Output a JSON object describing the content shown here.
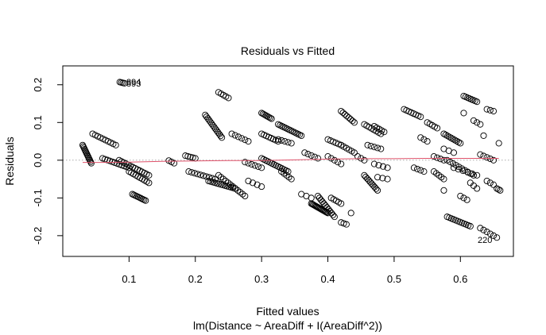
{
  "chart_data": {
    "type": "scatter",
    "title": "Residuals vs Fitted",
    "xlabel": "Fitted values",
    "subtitle": "lm(Distance ~ AreaDiff + I(AreaDiff^2))",
    "ylabel": "Residuals",
    "xlim": [
      0.0,
      0.68
    ],
    "ylim": [
      -0.255,
      0.25
    ],
    "x_ticks": [
      0.1,
      0.2,
      0.3,
      0.4,
      0.5,
      0.6
    ],
    "x_tick_labels": [
      "0.1",
      "0.2",
      "0.3",
      "0.4",
      "0.5",
      "0.6"
    ],
    "y_ticks": [
      -0.2,
      -0.1,
      0.0,
      0.1,
      0.2
    ],
    "y_tick_labels": [
      "-0.2",
      "-0.1",
      "0.0",
      "0.1",
      "0.2"
    ],
    "grid": false,
    "zero_line": {
      "y": 0.0,
      "style": "dotted",
      "color": "#aaaaaa"
    },
    "smooth_color": "#df536b",
    "smooth_line": [
      [
        0.03,
        -0.006
      ],
      [
        0.06,
        -0.006
      ],
      [
        0.1,
        -0.005
      ],
      [
        0.15,
        -0.003
      ],
      [
        0.2,
        -0.002
      ],
      [
        0.25,
        -0.001
      ],
      [
        0.3,
        -0.001
      ],
      [
        0.35,
        0.001
      ],
      [
        0.4,
        0.003
      ],
      [
        0.45,
        0.004
      ],
      [
        0.5,
        0.004
      ],
      [
        0.55,
        0.005
      ],
      [
        0.6,
        0.005
      ],
      [
        0.658,
        0.005
      ]
    ],
    "point_style": {
      "shape": "open-circle",
      "color": "#000000"
    },
    "point_clusters": [
      {
        "x0": 0.03,
        "y0": 0.04,
        "x1": 0.043,
        "y1": -0.008,
        "n": 14
      },
      {
        "x0": 0.045,
        "y0": 0.07,
        "x1": 0.08,
        "y1": 0.04,
        "n": 10
      },
      {
        "x0": 0.06,
        "y0": 0.005,
        "x1": 0.1,
        "y1": -0.02,
        "n": 12
      },
      {
        "x0": 0.085,
        "y0": 0.0,
        "x1": 0.13,
        "y1": -0.04,
        "n": 14
      },
      {
        "x0": 0.1,
        "y0": -0.03,
        "x1": 0.13,
        "y1": -0.06,
        "n": 10
      },
      {
        "x0": 0.105,
        "y0": -0.09,
        "x1": 0.125,
        "y1": -0.107,
        "n": 10
      },
      {
        "x0": 0.086,
        "y0": 0.207,
        "x1": 0.093,
        "y1": 0.204,
        "n": 4
      },
      {
        "x0": 0.16,
        "y0": -0.001,
        "x1": 0.168,
        "y1": -0.008,
        "n": 3
      },
      {
        "x0": 0.185,
        "y0": 0.012,
        "x1": 0.2,
        "y1": 0.005,
        "n": 5
      },
      {
        "x0": 0.19,
        "y0": -0.03,
        "x1": 0.23,
        "y1": -0.05,
        "n": 10
      },
      {
        "x0": 0.215,
        "y0": 0.12,
        "x1": 0.24,
        "y1": 0.06,
        "n": 14
      },
      {
        "x0": 0.22,
        "y0": -0.055,
        "x1": 0.26,
        "y1": -0.075,
        "n": 14
      },
      {
        "x0": 0.235,
        "y0": 0.18,
        "x1": 0.25,
        "y1": 0.165,
        "n": 5
      },
      {
        "x0": 0.235,
        "y0": -0.04,
        "x1": 0.275,
        "y1": -0.095,
        "n": 12
      },
      {
        "x0": 0.255,
        "y0": 0.07,
        "x1": 0.28,
        "y1": 0.05,
        "n": 6
      },
      {
        "x0": 0.275,
        "y0": -0.005,
        "x1": 0.3,
        "y1": -0.02,
        "n": 6
      },
      {
        "x0": 0.28,
        "y0": -0.055,
        "x1": 0.3,
        "y1": -0.07,
        "n": 4
      },
      {
        "x0": 0.3,
        "y0": 0.125,
        "x1": 0.315,
        "y1": 0.11,
        "n": 8
      },
      {
        "x0": 0.3,
        "y0": 0.07,
        "x1": 0.325,
        "y1": 0.05,
        "n": 8
      },
      {
        "x0": 0.3,
        "y0": 0.005,
        "x1": 0.34,
        "y1": -0.03,
        "n": 14
      },
      {
        "x0": 0.325,
        "y0": 0.095,
        "x1": 0.36,
        "y1": 0.065,
        "n": 14
      },
      {
        "x0": 0.325,
        "y0": 0.055,
        "x1": 0.345,
        "y1": 0.045,
        "n": 5
      },
      {
        "x0": 0.33,
        "y0": -0.03,
        "x1": 0.345,
        "y1": -0.05,
        "n": 5
      },
      {
        "x0": 0.365,
        "y0": 0.02,
        "x1": 0.385,
        "y1": 0.005,
        "n": 5
      },
      {
        "x0": 0.36,
        "y0": -0.09,
        "x1": 0.375,
        "y1": -0.1,
        "n": 3
      },
      {
        "x0": 0.375,
        "y0": -0.115,
        "x1": 0.4,
        "y1": -0.14,
        "n": 18
      },
      {
        "x0": 0.385,
        "y0": -0.095,
        "x1": 0.41,
        "y1": -0.15,
        "n": 12
      },
      {
        "x0": 0.4,
        "y0": 0.055,
        "x1": 0.42,
        "y1": 0.04,
        "n": 6
      },
      {
        "x0": 0.4,
        "y0": 0.01,
        "x1": 0.42,
        "y1": -0.01,
        "n": 5
      },
      {
        "x0": 0.405,
        "y0": -0.1,
        "x1": 0.42,
        "y1": -0.115,
        "n": 5
      },
      {
        "x0": 0.42,
        "y0": 0.13,
        "x1": 0.44,
        "y1": 0.1,
        "n": 8
      },
      {
        "x0": 0.42,
        "y0": -0.165,
        "x1": 0.428,
        "y1": -0.17,
        "n": 3
      },
      {
        "x0": 0.42,
        "y0": 0.04,
        "x1": 0.44,
        "y1": 0.02,
        "n": 6
      },
      {
        "x0": 0.435,
        "y0": -0.14,
        "x1": 0.435,
        "y1": -0.14,
        "n": 1
      },
      {
        "x0": 0.445,
        "y0": 0.01,
        "x1": 0.455,
        "y1": 0.0,
        "n": 3
      },
      {
        "x0": 0.455,
        "y0": 0.095,
        "x1": 0.48,
        "y1": 0.07,
        "n": 8
      },
      {
        "x0": 0.455,
        "y0": -0.04,
        "x1": 0.475,
        "y1": -0.08,
        "n": 10
      },
      {
        "x0": 0.46,
        "y0": 0.04,
        "x1": 0.48,
        "y1": 0.03,
        "n": 5
      },
      {
        "x0": 0.47,
        "y0": 0.09,
        "x1": 0.485,
        "y1": 0.075,
        "n": 5
      },
      {
        "x0": 0.47,
        "y0": -0.01,
        "x1": 0.49,
        "y1": -0.02,
        "n": 4
      },
      {
        "x0": 0.475,
        "y0": -0.045,
        "x1": 0.49,
        "y1": -0.05,
        "n": 3
      },
      {
        "x0": 0.515,
        "y0": 0.135,
        "x1": 0.54,
        "y1": 0.115,
        "n": 8
      },
      {
        "x0": 0.53,
        "y0": -0.02,
        "x1": 0.545,
        "y1": -0.03,
        "n": 4
      },
      {
        "x0": 0.54,
        "y0": 0.06,
        "x1": 0.55,
        "y1": 0.05,
        "n": 3
      },
      {
        "x0": 0.55,
        "y0": 0.1,
        "x1": 0.565,
        "y1": 0.085,
        "n": 5
      },
      {
        "x0": 0.56,
        "y0": 0.01,
        "x1": 0.575,
        "y1": 0.0,
        "n": 4
      },
      {
        "x0": 0.56,
        "y0": -0.03,
        "x1": 0.575,
        "y1": -0.05,
        "n": 5
      },
      {
        "x0": 0.575,
        "y0": 0.07,
        "x1": 0.6,
        "y1": 0.045,
        "n": 10
      },
      {
        "x0": 0.575,
        "y0": 0.03,
        "x1": 0.59,
        "y1": 0.02,
        "n": 3
      },
      {
        "x0": 0.575,
        "y0": -0.08,
        "x1": 0.58,
        "y1": -0.08,
        "n": 1
      },
      {
        "x0": 0.58,
        "y0": 0.0,
        "x1": 0.62,
        "y1": -0.04,
        "n": 10
      },
      {
        "x0": 0.58,
        "y0": -0.15,
        "x1": 0.615,
        "y1": -0.175,
        "n": 12
      },
      {
        "x0": 0.59,
        "y0": -0.02,
        "x1": 0.625,
        "y1": -0.04,
        "n": 6
      },
      {
        "x0": 0.6,
        "y0": -0.095,
        "x1": 0.61,
        "y1": -0.105,
        "n": 3
      },
      {
        "x0": 0.605,
        "y0": 0.17,
        "x1": 0.625,
        "y1": 0.155,
        "n": 8
      },
      {
        "x0": 0.605,
        "y0": 0.125,
        "x1": 0.605,
        "y1": 0.125,
        "n": 1
      },
      {
        "x0": 0.615,
        "y0": -0.06,
        "x1": 0.625,
        "y1": -0.075,
        "n": 3
      },
      {
        "x0": 0.62,
        "y0": 0.105,
        "x1": 0.63,
        "y1": 0.095,
        "n": 3
      },
      {
        "x0": 0.63,
        "y0": -0.18,
        "x1": 0.655,
        "y1": -0.205,
        "n": 6
      },
      {
        "x0": 0.63,
        "y0": 0.015,
        "x1": 0.65,
        "y1": 0.0,
        "n": 5
      },
      {
        "x0": 0.635,
        "y0": 0.065,
        "x1": 0.635,
        "y1": 0.065,
        "n": 1
      },
      {
        "x0": 0.64,
        "y0": -0.055,
        "x1": 0.65,
        "y1": -0.065,
        "n": 3
      },
      {
        "x0": 0.64,
        "y0": 0.135,
        "x1": 0.65,
        "y1": 0.13,
        "n": 3
      },
      {
        "x0": 0.655,
        "y0": -0.075,
        "x1": 0.66,
        "y1": -0.08,
        "n": 3
      },
      {
        "x0": 0.658,
        "y0": 0.045,
        "x1": 0.658,
        "y1": 0.045,
        "n": 1
      }
    ],
    "annotations": [
      {
        "text": "894",
        "x": 0.096,
        "y": 0.208
      },
      {
        "text": "893",
        "x": 0.096,
        "y": 0.204
      },
      {
        "text": "220",
        "x": 0.626,
        "y": -0.211
      }
    ]
  }
}
